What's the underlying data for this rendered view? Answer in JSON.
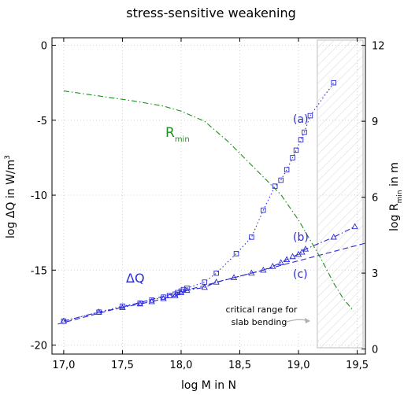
{
  "chart_data": {
    "type": "scatter",
    "title": "stress-sensitive weakening",
    "xlabel": "log M in N",
    "ylabel_main": "log ΔQ in W/m",
    "ylabel_sup": "3",
    "y2label_main": "log R",
    "y2label_sub": "min",
    "y2label_suffix": " in m",
    "xlim": [
      16.9,
      19.57
    ],
    "ylim": [
      -20.6,
      0.5
    ],
    "y2lim": [
      -0.2,
      12.3
    ],
    "x_ticks": [
      17.0,
      17.5,
      18.0,
      18.5,
      19.0,
      19.5
    ],
    "x_tick_labels": [
      "17,0",
      "17,5",
      "18,0",
      "18,5",
      "19,0",
      "19,5"
    ],
    "y_ticks": [
      0,
      -5,
      -10,
      -15,
      -20
    ],
    "y_tick_labels": [
      "0",
      "-5",
      "-10",
      "-15",
      "-20"
    ],
    "y2_ticks": [
      0,
      3,
      6,
      9,
      12
    ],
    "y2_tick_labels": [
      "0",
      "3",
      "6",
      "9",
      "12"
    ],
    "grid": true,
    "colors": {
      "blue": "#2a2ad4",
      "green": "#1f8f1f",
      "shade": "#c8c8c8"
    },
    "series": [
      {
        "label": "(a)",
        "axis": "left",
        "marker": "square",
        "line": "dotted",
        "x": [
          17.0,
          17.3,
          17.5,
          17.65,
          17.75,
          17.85,
          17.9,
          17.95,
          17.97,
          18.0,
          18.02,
          18.05,
          18.2,
          18.3,
          18.47,
          18.6,
          18.7,
          18.8,
          18.85,
          18.9,
          18.95,
          18.98,
          19.02,
          19.05,
          19.1,
          19.3
        ],
        "y": [
          -18.4,
          -17.8,
          -17.4,
          -17.2,
          -17.0,
          -16.8,
          -16.7,
          -16.6,
          -16.5,
          -16.4,
          -16.3,
          -16.2,
          -15.8,
          -15.2,
          -13.9,
          -12.8,
          -11.0,
          -9.4,
          -9.0,
          -8.3,
          -7.5,
          -7.0,
          -6.3,
          -5.8,
          -4.7,
          -2.5
        ]
      },
      {
        "label": "(b)",
        "axis": "left",
        "marker": "triangle",
        "line": "dash-dot",
        "x": [
          17.0,
          17.3,
          17.5,
          17.65,
          17.75,
          17.85,
          17.95,
          18.0,
          18.05,
          18.2,
          18.3,
          18.45,
          18.6,
          18.7,
          18.78,
          18.85,
          18.9,
          18.95,
          19.0,
          19.03,
          19.06,
          19.3,
          19.48
        ],
        "y": [
          -18.4,
          -17.8,
          -17.5,
          -17.25,
          -17.1,
          -16.9,
          -16.7,
          -16.5,
          -16.35,
          -16.15,
          -15.8,
          -15.5,
          -15.2,
          -15.0,
          -14.75,
          -14.5,
          -14.3,
          -14.1,
          -13.95,
          -13.8,
          -13.6,
          -12.8,
          -12.1
        ]
      },
      {
        "label": "(c)",
        "axis": "left",
        "marker": "none",
        "line": "dashed",
        "x": [
          16.95,
          19.57
        ],
        "y": [
          -18.6,
          -13.2
        ]
      },
      {
        "label": "R",
        "label_sub": "min",
        "axis": "right",
        "marker": "none",
        "line": "dash-dot",
        "x": [
          17.0,
          17.3,
          17.6,
          17.85,
          18.0,
          18.2,
          18.4,
          18.55,
          18.7,
          18.85,
          19.0,
          19.1,
          19.2,
          19.3,
          19.38,
          19.47
        ],
        "y": [
          10.2,
          10.0,
          9.8,
          9.6,
          9.4,
          9.0,
          8.2,
          7.5,
          6.8,
          6.1,
          5.1,
          4.3,
          3.5,
          2.6,
          2.0,
          1.5
        ]
      }
    ],
    "annotations": {
      "delta_q": "ΔQ",
      "shaded_range_text": [
        "critical range for",
        "slab bending"
      ],
      "shaded_range_x": [
        19.16,
        19.57
      ]
    }
  }
}
